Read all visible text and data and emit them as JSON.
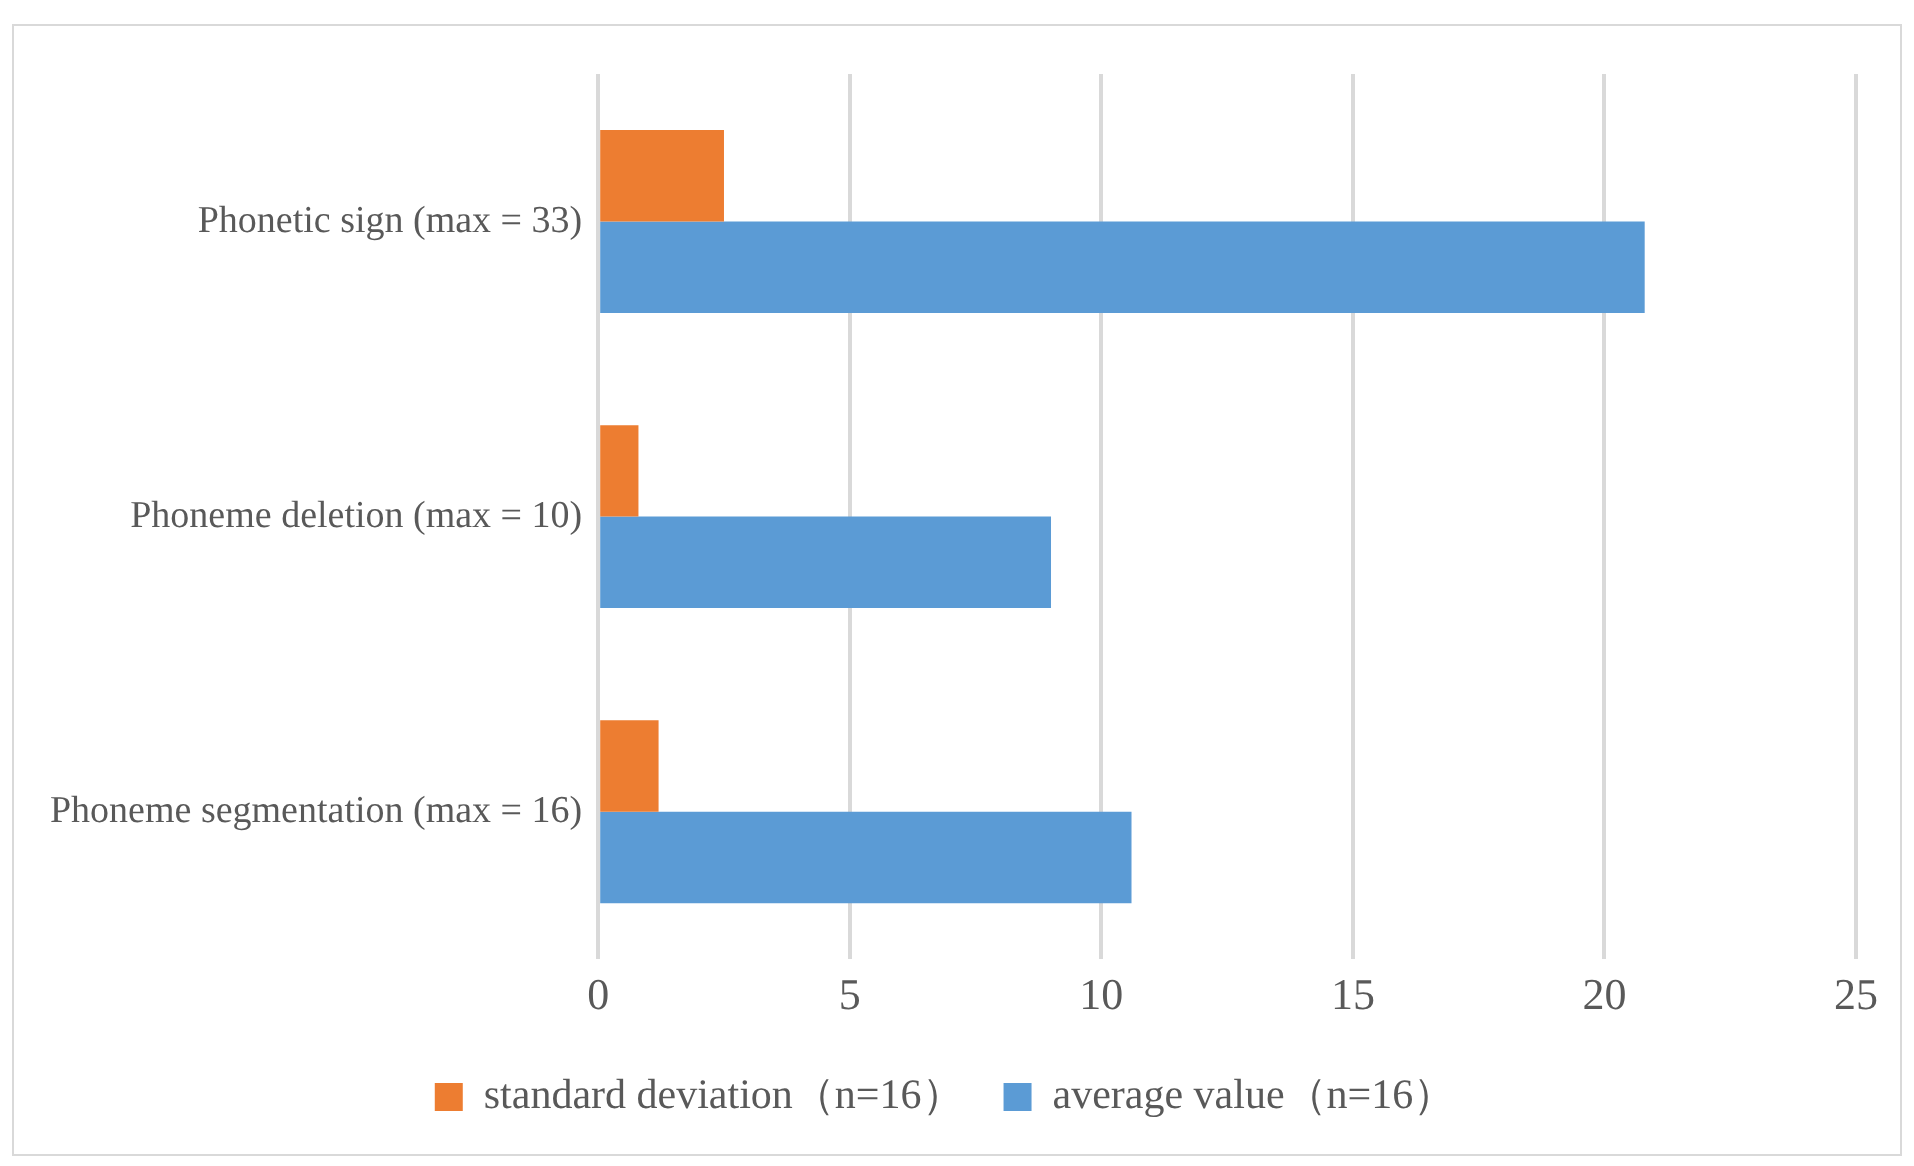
{
  "chart_data": {
    "type": "bar",
    "orientation": "horizontal",
    "categories": [
      "Phonetic sign (max = 33)",
      "Phoneme deletion (max = 10)",
      "Phoneme segmentation (max = 16)"
    ],
    "series": [
      {
        "name": "standard deviation（n=16）",
        "color": "#ed7d31",
        "values": [
          2.5,
          0.8,
          1.2
        ]
      },
      {
        "name": "average value（n=16）",
        "color": "#5b9bd5",
        "values": [
          20.8,
          9.0,
          10.6
        ]
      }
    ],
    "xlim": [
      0,
      25
    ],
    "xticks": [
      0,
      5,
      10,
      15,
      20,
      25
    ],
    "grid": "x",
    "legend": "bottom"
  }
}
